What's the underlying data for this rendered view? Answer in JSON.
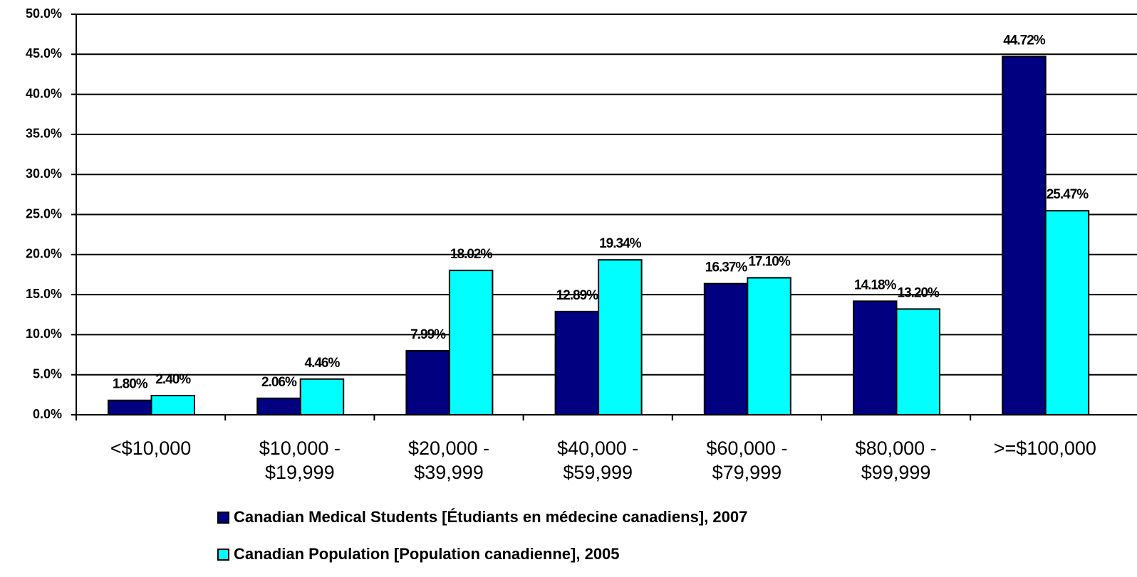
{
  "chart_data": {
    "type": "bar",
    "categories": [
      "<$10,000",
      "$10,000 - $19,999",
      "$20,000 - $39,999",
      "$40,000 - $59,999",
      "$60,000 - $79,999",
      "$80,000 - $99,999",
      ">=$100,000"
    ],
    "series": [
      {
        "name": "Canadian Medical Students [Étudiants en médecine canadiens], 2007",
        "color": "#000080",
        "values": [
          1.8,
          2.06,
          7.99,
          12.89,
          16.37,
          14.18,
          44.72
        ],
        "value_labels": [
          "1.80%",
          "2.06%",
          "7.99%",
          "12.89%",
          "16.37%",
          "14.18%",
          "44.72%"
        ]
      },
      {
        "name": "Canadian Population [Population canadienne], 2005",
        "color": "#00FFFF",
        "values": [
          2.4,
          4.46,
          18.02,
          19.34,
          17.1,
          13.2,
          25.47
        ],
        "value_labels": [
          "2.40%",
          "4.46%",
          "18.02%",
          "19.34%",
          "17.10%",
          "13.20%",
          "25.47%"
        ]
      }
    ],
    "ylim": [
      0,
      50
    ],
    "yticks": [
      {
        "value": 0,
        "label": "0.0%"
      },
      {
        "value": 5,
        "label": "5.0%"
      },
      {
        "value": 10,
        "label": "10.0%"
      },
      {
        "value": 15,
        "label": "15.0%"
      },
      {
        "value": 20,
        "label": "20.0%"
      },
      {
        "value": 25,
        "label": "25.0%"
      },
      {
        "value": 30,
        "label": "30.0%"
      },
      {
        "value": 35,
        "label": "35.0%"
      },
      {
        "value": 40,
        "label": "40.0%"
      },
      {
        "value": 45,
        "label": "45.0%"
      },
      {
        "value": 50,
        "label": "50.0%"
      }
    ],
    "grid": true
  }
}
